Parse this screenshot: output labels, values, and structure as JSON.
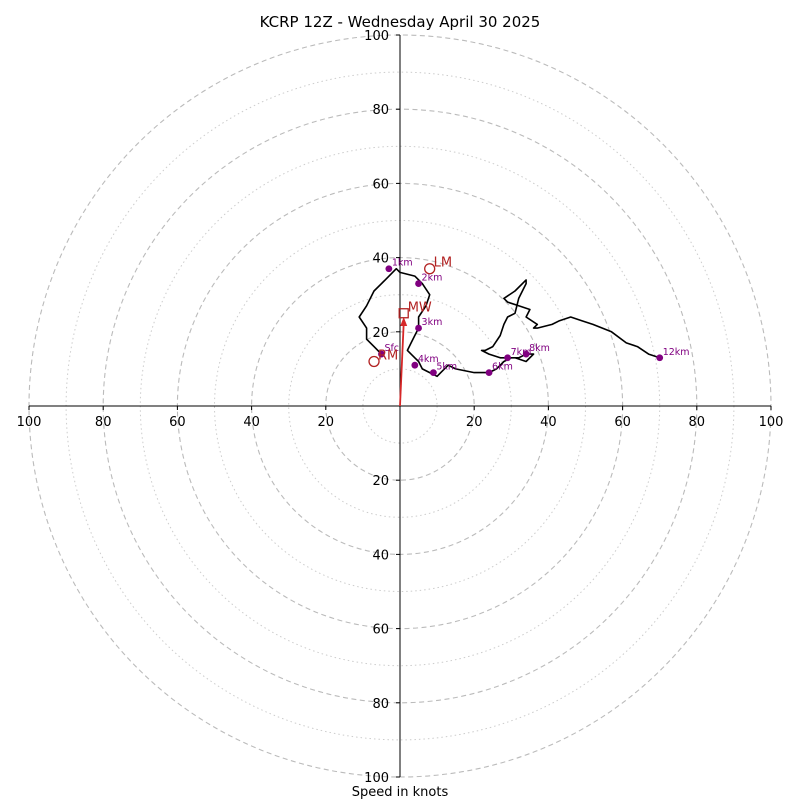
{
  "chart_data": {
    "type": "hodograph",
    "title": "KCRP 12Z - Wednesday April 30 2025",
    "xlabel": "Speed in knots",
    "ylabel": "",
    "xlim": [
      -100,
      100
    ],
    "ylim": [
      -100,
      100
    ],
    "ring_major": [
      20,
      40,
      60,
      80,
      100
    ],
    "ring_minor": [
      10,
      30,
      50,
      70,
      90
    ],
    "axis_ticks": [
      20,
      40,
      60,
      80,
      100
    ],
    "hodograph": {
      "u": [
        -5,
        -7,
        -9,
        -9,
        -11,
        -9,
        -7,
        -4,
        -1,
        0,
        4,
        6,
        8,
        7,
        5,
        5,
        4,
        3,
        2,
        4,
        5,
        6,
        8,
        10,
        11,
        13,
        15,
        20,
        22,
        24,
        26,
        28,
        30,
        32,
        34,
        36,
        34,
        31,
        27,
        24,
        22,
        23,
        25,
        27,
        28,
        29,
        31,
        32,
        34,
        34,
        31,
        28,
        29,
        32,
        35,
        34,
        37,
        36,
        37,
        41,
        43,
        46,
        49,
        52,
        57,
        61,
        64,
        67,
        70
      ],
      "v": [
        14,
        16,
        18,
        21,
        24,
        27,
        31,
        34,
        37,
        36,
        35,
        33,
        30,
        27,
        24,
        21,
        19,
        17,
        15,
        13,
        12,
        10,
        9,
        8,
        9,
        11,
        10,
        9,
        9,
        9,
        10,
        12,
        13,
        13,
        14,
        14,
        12,
        13,
        13,
        14,
        15,
        15,
        16,
        19,
        22,
        24,
        25,
        29,
        33,
        34,
        31,
        29,
        28,
        27,
        26,
        24,
        22,
        21,
        21,
        22,
        23,
        24,
        23,
        22,
        20,
        17,
        16,
        14,
        13
      ]
    },
    "height_markers": [
      {
        "label": "Sfc",
        "u": -5,
        "v": 14
      },
      {
        "label": "1km",
        "u": -3,
        "v": 37
      },
      {
        "label": "2km",
        "u": 5,
        "v": 33
      },
      {
        "label": "3km",
        "u": 5,
        "v": 21
      },
      {
        "label": "4km",
        "u": 4,
        "v": 11
      },
      {
        "label": "5km",
        "u": 9,
        "v": 9
      },
      {
        "label": "6km",
        "u": 24,
        "v": 9
      },
      {
        "label": "7km",
        "u": 29,
        "v": 13
      },
      {
        "label": "8km",
        "u": 34,
        "v": 14
      },
      {
        "label": "12km",
        "u": 70,
        "v": 13
      }
    ],
    "storm_motions": [
      {
        "label": "RM",
        "u": -7,
        "v": 12,
        "shape": "circle"
      },
      {
        "label": "LM",
        "u": 8,
        "v": 37,
        "shape": "circle"
      },
      {
        "label": "MW",
        "u": 1,
        "v": 25,
        "shape": "square"
      }
    ],
    "shear_vector": {
      "u0": 0,
      "v0": 0,
      "u1": 1,
      "v1": 24
    },
    "colors": {
      "trace": "#000000",
      "markers": "#800080",
      "storm_motion": "#b22222",
      "shear_vector": "#d62728",
      "rings": "#bbbbbb",
      "axes": "#000000"
    }
  }
}
